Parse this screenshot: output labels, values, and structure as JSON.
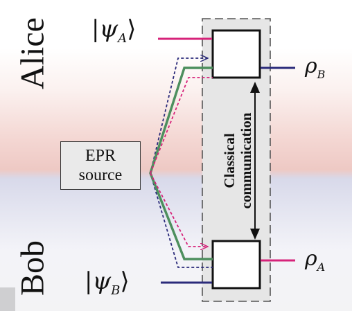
{
  "labels": {
    "alice": "Alice",
    "bob": "Bob",
    "epr_line1": "EPR",
    "epr_line2": "source",
    "classical_line1": "Classical",
    "classical_line2": "communication",
    "psi_symbol": "ψ",
    "psi_A_sub": "A",
    "psi_B_sub": "B",
    "rho_symbol": "ρ",
    "rho_B_sub": "B",
    "rho_A_sub": "A",
    "ket_left": "|",
    "ket_right": "⟩"
  },
  "colors": {
    "magenta": "#d6237a",
    "navy": "#2a2a7a",
    "green": "#4d8f5e",
    "box_border": "#111111",
    "dashed_border": "#555555",
    "panel_fill": "#e6e6e6",
    "epr_fill": "#eaeaea"
  }
}
